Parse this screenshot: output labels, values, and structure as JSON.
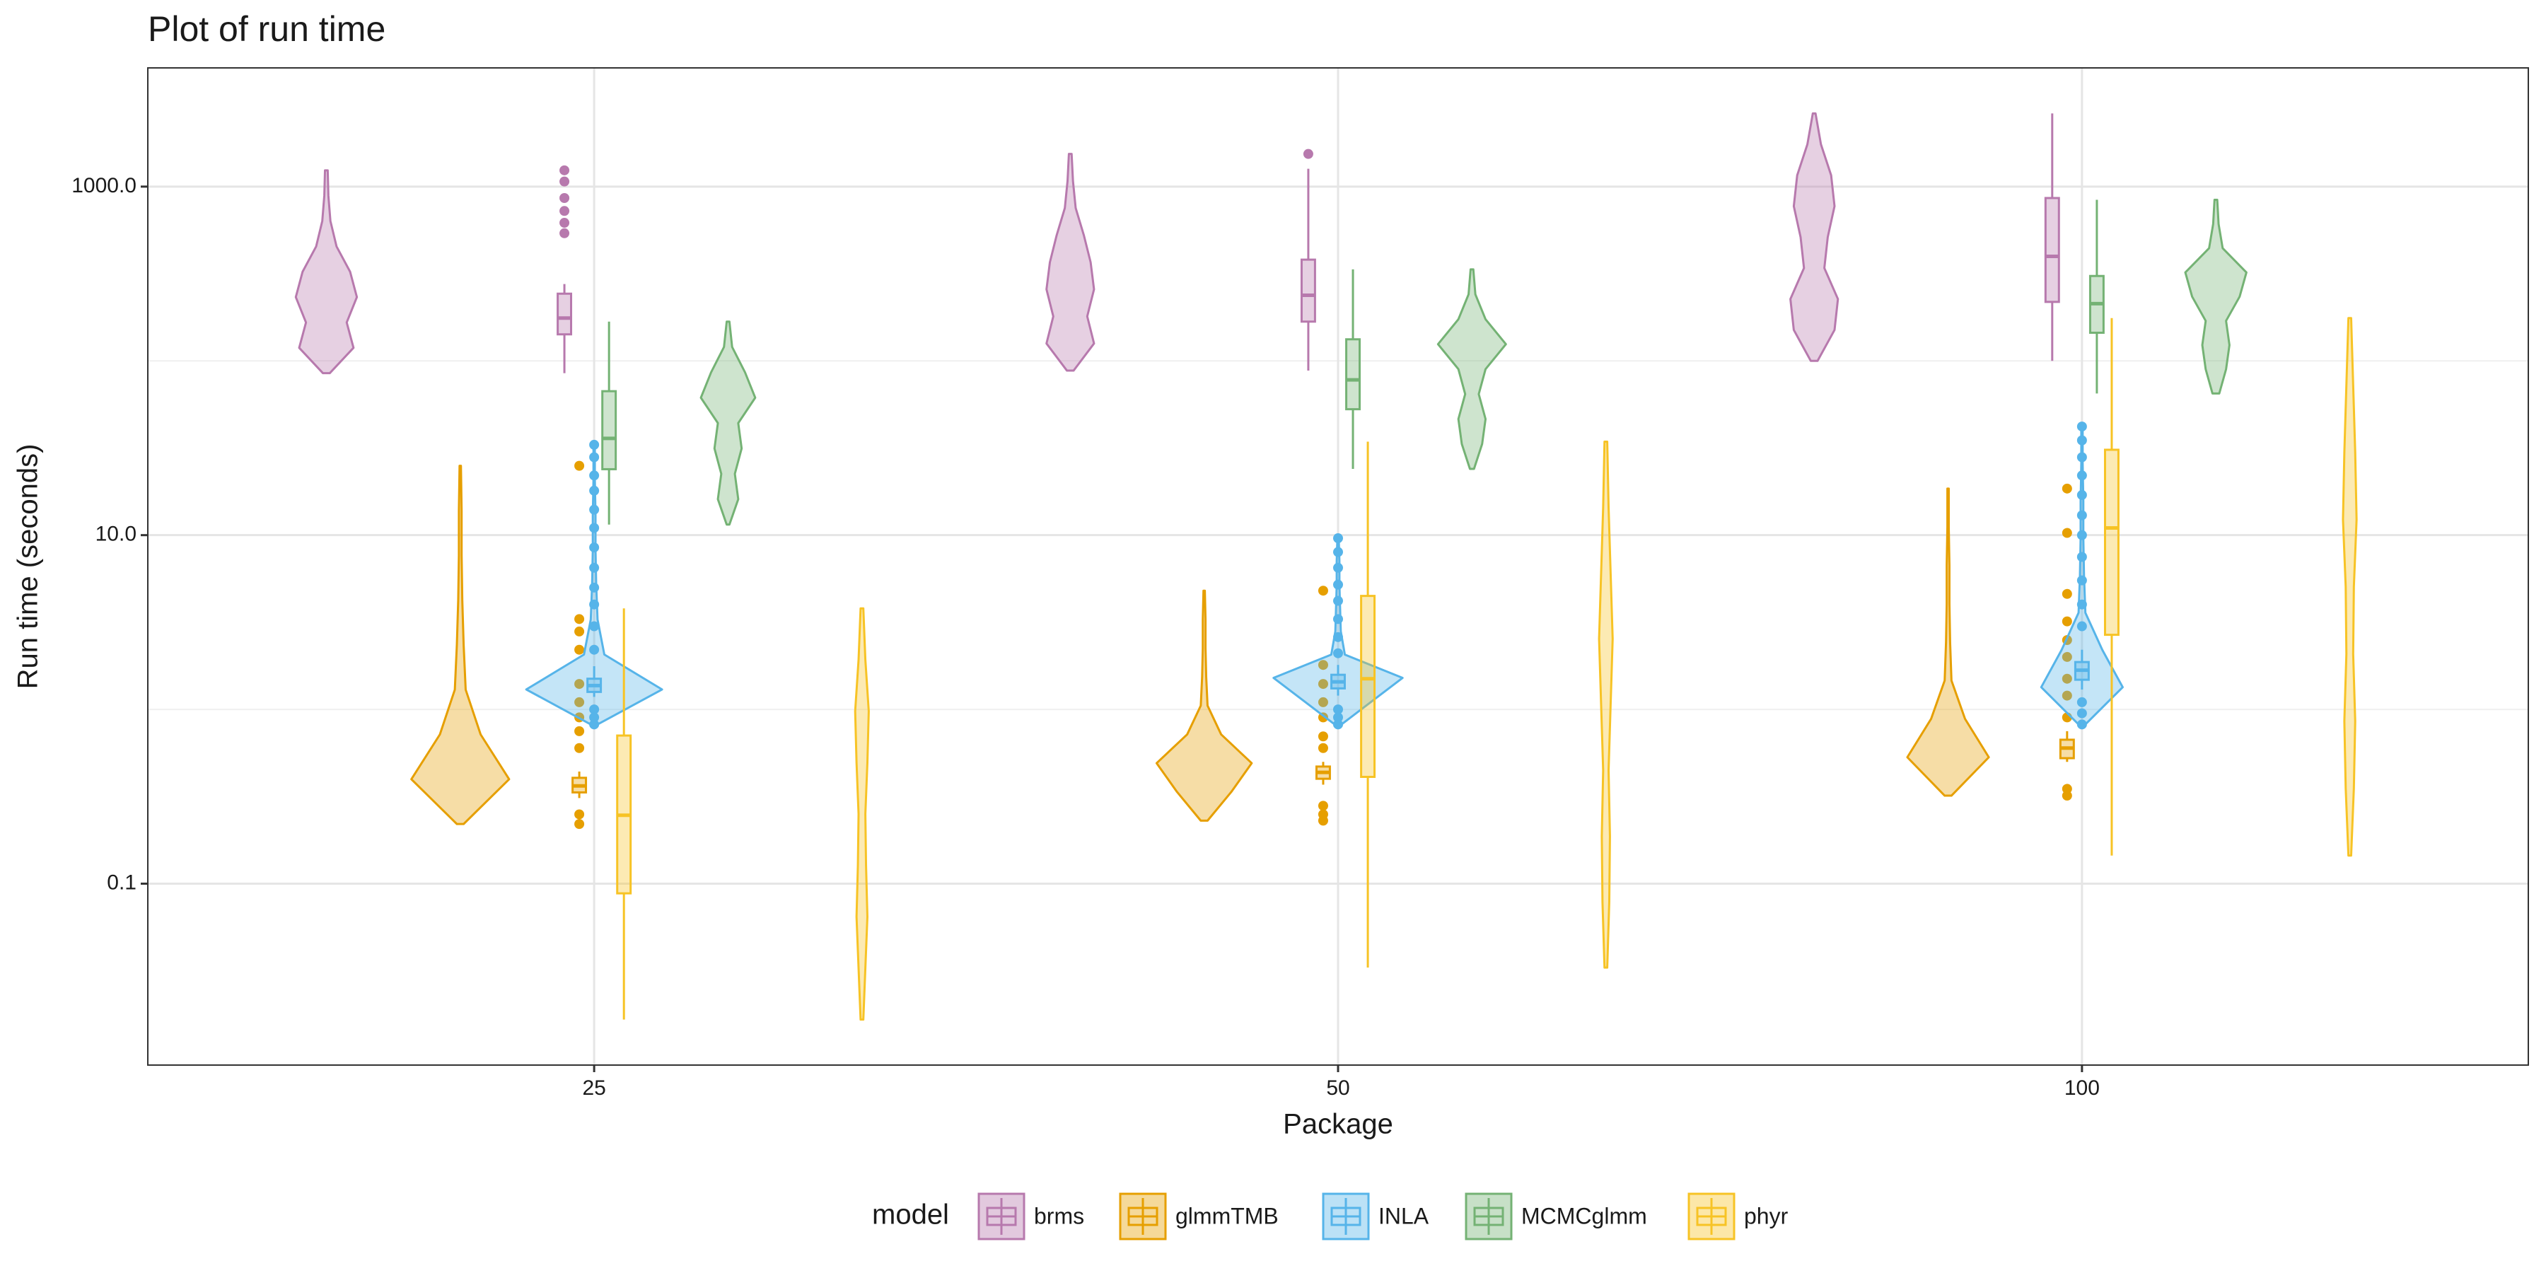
{
  "chart_data": {
    "type": "violin",
    "title": "Plot of run time",
    "x_label": "Package",
    "y_label": "Run time (seconds)",
    "legend_title": "model",
    "legend_position": "bottom",
    "categories": [
      "25",
      "50",
      "100"
    ],
    "yscale": "log",
    "ylim": [
      0.0091,
      4800
    ],
    "yticks": [
      {
        "value": 0.1,
        "label": "0.1"
      },
      {
        "value": 10,
        "label": "10.0"
      },
      {
        "value": 1000,
        "label": "1000.0"
      }
    ],
    "minor_yticks": [
      1,
      100
    ],
    "grid": true,
    "series": [
      {
        "name": "brms",
        "color": "#b779ad",
        "groups": [
          {
            "box": [
              85,
              142,
              176,
              243,
              276
            ],
            "outliers": [
              540,
              620,
              725,
              860,
              1070,
              1240
            ],
            "density": [
              0.05,
              0.4,
              0.3,
              0.45,
              0.35,
              0.15,
              0.06,
              0.03,
              0.02
            ]
          },
          {
            "box": [
              88,
              168,
              238,
              381,
              1266
            ],
            "outliers": [
              1540
            ],
            "density": [
              0.05,
              0.35,
              0.25,
              0.35,
              0.3,
              0.2,
              0.08,
              0.04,
              0.02
            ]
          },
          {
            "box": [
              100,
              218,
              398,
              860,
              2630
            ],
            "outliers": [],
            "density": [
              0.05,
              0.3,
              0.35,
              0.15,
              0.2,
              0.3,
              0.25,
              0.1,
              0.02
            ]
          }
        ]
      },
      {
        "name": "glmmTMB",
        "color": "#e69f00",
        "groups": [
          {
            "box": [
              0.31,
              0.334,
              0.364,
              0.405,
              0.44
            ],
            "outliers": [
              0.22,
              0.25,
              0.6,
              0.75,
              0.9,
              1.1,
              1.4,
              2.2,
              2.8,
              3.3,
              25
            ],
            "density": [
              0.05,
              0.72,
              0.3,
              0.08,
              0.05,
              0.03,
              0.02,
              0.02,
              0.01
            ]
          },
          {
            "box": [
              0.37,
              0.4,
              0.435,
              0.47,
              0.5
            ],
            "outliers": [
              0.23,
              0.25,
              0.28,
              0.6,
              0.7,
              0.9,
              1.1,
              1.4,
              1.8,
              4.8
            ],
            "density": [
              0.05,
              0.4,
              0.7,
              0.25,
              0.05,
              0.03,
              0.02,
              0.02,
              0.01
            ]
          },
          {
            "box": [
              0.5,
              0.525,
              0.6,
              0.67,
              0.75
            ],
            "outliers": [
              0.32,
              0.35,
              0.9,
              1.2,
              1.5,
              2.0,
              2.5,
              3.2,
              4.6,
              10.3,
              18.5
            ],
            "density": [
              0.05,
              0.6,
              0.25,
              0.05,
              0.03,
              0.02,
              0.02,
              0.01,
              0.01
            ]
          }
        ]
      },
      {
        "name": "INLA",
        "color": "#56b4e9",
        "groups": [
          {
            "box": [
              1.18,
              1.26,
              1.37,
              1.5,
              1.77
            ],
            "outliers": [
              0.82,
              0.9,
              1.0,
              2.2,
              3,
              4,
              5,
              6.5,
              8.5,
              11,
              14,
              18,
              22,
              28,
              33
            ],
            "density": [
              0.05,
              1.0,
              0.15,
              0.05,
              0.03,
              0.02,
              0.02,
              0.01,
              0.01
            ]
          },
          {
            "box": [
              1.2,
              1.32,
              1.44,
              1.58,
              1.8
            ],
            "outliers": [
              0.82,
              0.9,
              1.0,
              2.1,
              2.6,
              3.3,
              4.2,
              5.2,
              6.5,
              8,
              9.6
            ],
            "density": [
              0.05,
              0.5,
              0.95,
              0.1,
              0.04,
              0.03,
              0.02,
              0.02,
              0.01
            ]
          },
          {
            "box": [
              1.3,
              1.48,
              1.68,
              1.87,
              2.2
            ],
            "outliers": [
              0.82,
              0.95,
              1.1,
              3,
              4,
              5.5,
              7.5,
              10,
              13,
              17,
              22,
              28,
              35,
              42
            ],
            "density": [
              0.05,
              0.6,
              0.3,
              0.05,
              0.03,
              0.02,
              0.02,
              0.01,
              0.01
            ]
          }
        ]
      },
      {
        "name": "MCMCglmm",
        "color": "#74b274",
        "groups": [
          {
            "box": [
              11.5,
              23.9,
              35.9,
              67,
              168
            ],
            "outliers": [],
            "density": [
              0.02,
              0.15,
              0.1,
              0.2,
              0.15,
              0.4,
              0.25,
              0.06,
              0.02
            ]
          },
          {
            "box": [
              24,
              52.8,
              77.8,
              133,
              335
            ],
            "outliers": [],
            "density": [
              0.03,
              0.15,
              0.2,
              0.1,
              0.2,
              0.5,
              0.2,
              0.05,
              0.02
            ]
          },
          {
            "box": [
              65,
              145,
              213,
              307,
              840
            ],
            "outliers": [],
            "density": [
              0.05,
              0.15,
              0.2,
              0.15,
              0.35,
              0.45,
              0.1,
              0.04,
              0.02
            ]
          }
        ]
      },
      {
        "name": "phyr",
        "color": "#f7c325",
        "groups": [
          {
            "box": [
              0.0166,
              0.088,
              0.247,
              0.708,
              3.8
            ],
            "outliers": [],
            "density": [
              0.02,
              0.05,
              0.08,
              0.06,
              0.05,
              0.08,
              0.1,
              0.05,
              0.02
            ]
          },
          {
            "box": [
              0.033,
              0.41,
              1.5,
              4.48,
              34.4
            ],
            "outliers": [],
            "density": [
              0.02,
              0.05,
              0.06,
              0.04,
              0.07,
              0.1,
              0.07,
              0.04,
              0.02
            ]
          },
          {
            "box": [
              0.145,
              2.68,
              11,
              30.9,
              176
            ],
            "outliers": [],
            "density": [
              0.02,
              0.06,
              0.08,
              0.05,
              0.06,
              0.1,
              0.08,
              0.05,
              0.02
            ]
          }
        ]
      }
    ]
  }
}
